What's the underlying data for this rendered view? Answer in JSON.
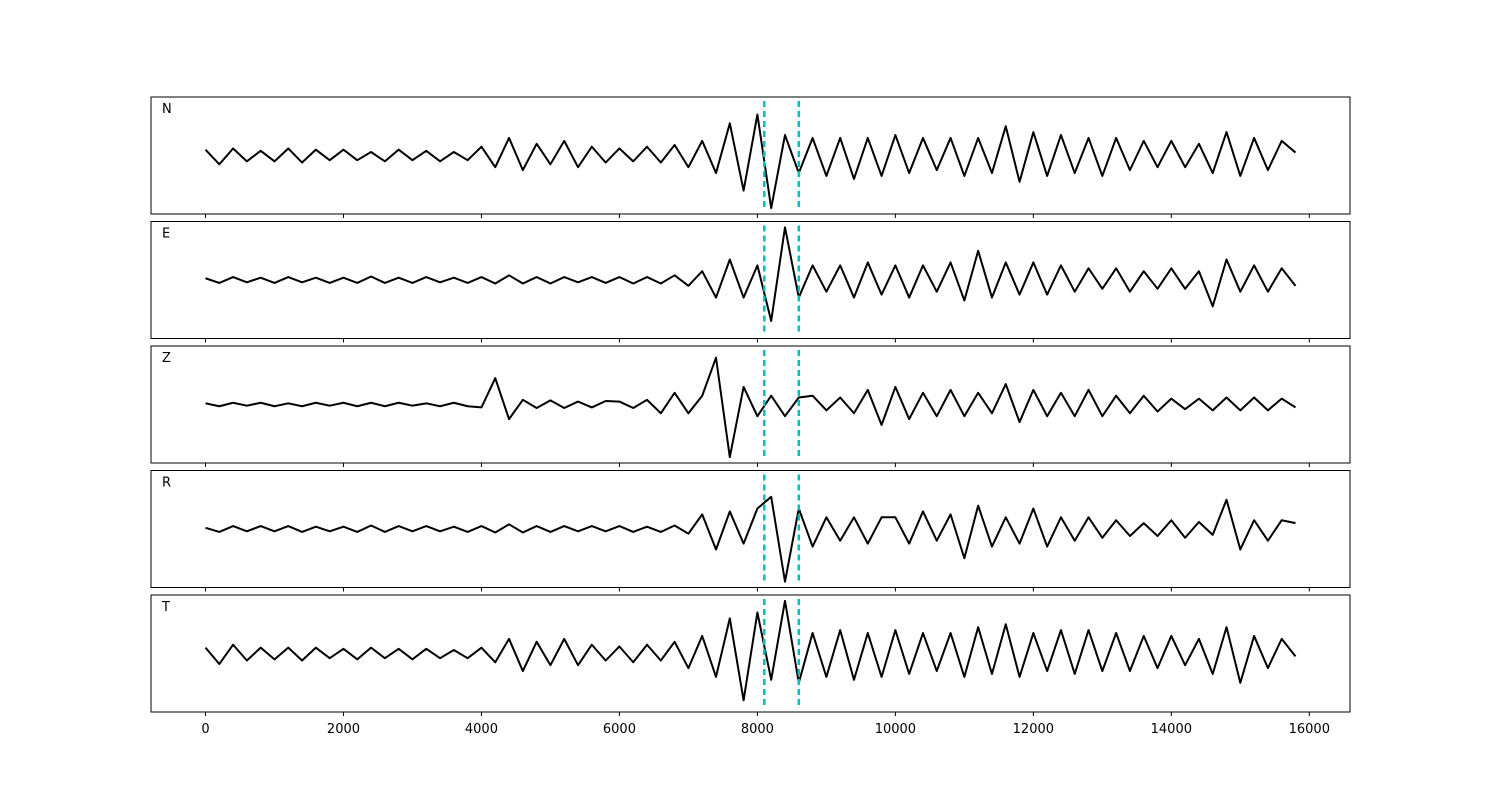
{
  "chart_data": {
    "type": "line",
    "xlim": [
      -790,
      16590
    ],
    "xticks": [
      0,
      2000,
      4000,
      6000,
      8000,
      10000,
      12000,
      14000,
      16000
    ],
    "ylim": [
      -1,
      1
    ],
    "x": [
      0,
      200,
      400,
      600,
      800,
      1000,
      1200,
      1400,
      1600,
      1800,
      2000,
      2200,
      2400,
      2600,
      2800,
      3000,
      3200,
      3400,
      3600,
      3800,
      4000,
      4200,
      4400,
      4600,
      4800,
      5000,
      5200,
      5400,
      5600,
      5800,
      6000,
      6200,
      6400,
      6600,
      6800,
      7000,
      7200,
      7400,
      7600,
      7800,
      8000,
      8200,
      8400,
      8600,
      8800,
      9000,
      9200,
      9400,
      9600,
      9800,
      10000,
      10200,
      10400,
      10600,
      10800,
      11000,
      11200,
      11400,
      11600,
      11800,
      12000,
      12200,
      12400,
      12600,
      12800,
      13000,
      13200,
      13400,
      13600,
      13800,
      14000,
      14200,
      14400,
      14600,
      14800,
      15000,
      15200,
      15400,
      15600,
      15800
    ],
    "markers": {
      "color": "#00bfbf",
      "x": [
        8100,
        8600
      ]
    },
    "series": [
      {
        "name": "N",
        "color": "#000000",
        "values": [
          0.1,
          -0.15,
          0.12,
          -0.1,
          0.08,
          -0.1,
          0.12,
          -0.12,
          0.1,
          -0.08,
          0.1,
          -0.08,
          0.06,
          -0.1,
          0.1,
          -0.08,
          0.08,
          -0.1,
          0.06,
          -0.08,
          0.15,
          -0.2,
          0.3,
          -0.25,
          0.2,
          -0.15,
          0.25,
          -0.2,
          0.15,
          -0.12,
          0.12,
          -0.1,
          0.15,
          -0.12,
          0.18,
          -0.2,
          0.25,
          -0.3,
          0.55,
          -0.6,
          0.7,
          -0.9,
          0.35,
          -0.3,
          0.3,
          -0.35,
          0.3,
          -0.4,
          0.3,
          -0.35,
          0.35,
          -0.3,
          0.3,
          -0.25,
          0.3,
          -0.35,
          0.3,
          -0.3,
          0.5,
          -0.45,
          0.4,
          -0.35,
          0.35,
          -0.3,
          0.3,
          -0.35,
          0.3,
          -0.25,
          0.25,
          -0.2,
          0.25,
          -0.2,
          0.2,
          -0.3,
          0.4,
          -0.35,
          0.3,
          -0.25,
          0.25,
          0.05
        ]
      },
      {
        "name": "E",
        "color": "#000000",
        "values": [
          0.03,
          -0.05,
          0.05,
          -0.04,
          0.04,
          -0.05,
          0.05,
          -0.04,
          0.04,
          -0.05,
          0.04,
          -0.05,
          0.06,
          -0.05,
          0.04,
          -0.05,
          0.05,
          -0.04,
          0.04,
          -0.05,
          0.05,
          -0.06,
          0.08,
          -0.06,
          0.05,
          -0.06,
          0.05,
          -0.04,
          0.05,
          -0.05,
          0.05,
          -0.06,
          0.05,
          -0.06,
          0.08,
          -0.1,
          0.15,
          -0.3,
          0.35,
          -0.3,
          0.25,
          -0.7,
          0.9,
          -0.3,
          0.25,
          -0.2,
          0.25,
          -0.3,
          0.3,
          -0.25,
          0.25,
          -0.3,
          0.25,
          -0.2,
          0.3,
          -0.35,
          0.5,
          -0.3,
          0.3,
          -0.25,
          0.3,
          -0.25,
          0.25,
          -0.2,
          0.2,
          -0.15,
          0.2,
          -0.2,
          0.15,
          -0.15,
          0.2,
          -0.15,
          0.15,
          -0.45,
          0.35,
          -0.2,
          0.25,
          -0.2,
          0.2,
          -0.1
        ]
      },
      {
        "name": "Z",
        "color": "#000000",
        "values": [
          0.02,
          -0.03,
          0.03,
          -0.02,
          0.03,
          -0.03,
          0.02,
          -0.03,
          0.03,
          -0.02,
          0.03,
          -0.03,
          0.03,
          -0.03,
          0.03,
          -0.02,
          0.02,
          -0.03,
          0.03,
          -0.03,
          -0.05,
          0.45,
          -0.25,
          0.08,
          -0.06,
          0.07,
          -0.06,
          0.05,
          -0.05,
          0.06,
          0.05,
          -0.06,
          0.08,
          -0.15,
          0.2,
          -0.15,
          0.15,
          0.8,
          -0.9,
          0.3,
          -0.2,
          0.15,
          -0.2,
          0.12,
          0.15,
          -0.1,
          0.12,
          -0.15,
          0.25,
          -0.35,
          0.3,
          -0.25,
          0.2,
          -0.2,
          0.25,
          -0.2,
          0.2,
          -0.15,
          0.35,
          -0.3,
          0.25,
          -0.2,
          0.2,
          -0.2,
          0.25,
          -0.2,
          0.15,
          -0.15,
          0.15,
          -0.12,
          0.1,
          -0.08,
          0.1,
          -0.1,
          0.12,
          -0.1,
          0.12,
          -0.1,
          0.1,
          -0.05
        ]
      },
      {
        "name": "R",
        "color": "#000000",
        "values": [
          0.02,
          -0.05,
          0.05,
          -0.04,
          0.05,
          -0.04,
          0.05,
          -0.05,
          0.04,
          -0.04,
          0.04,
          -0.05,
          0.06,
          -0.05,
          0.05,
          -0.04,
          0.05,
          -0.04,
          0.04,
          -0.05,
          0.05,
          -0.06,
          0.08,
          -0.06,
          0.05,
          -0.05,
          0.05,
          -0.04,
          0.05,
          -0.04,
          0.05,
          -0.05,
          0.04,
          -0.05,
          0.06,
          -0.08,
          0.25,
          -0.35,
          0.3,
          -0.25,
          0.35,
          0.55,
          -0.9,
          0.35,
          -0.3,
          0.2,
          -0.2,
          0.2,
          -0.25,
          0.2,
          0.2,
          -0.25,
          0.3,
          -0.2,
          0.25,
          -0.5,
          0.4,
          -0.3,
          0.2,
          -0.25,
          0.35,
          -0.3,
          0.2,
          -0.2,
          0.2,
          -0.15,
          0.15,
          -0.12,
          0.1,
          -0.12,
          0.15,
          -0.15,
          0.12,
          -0.1,
          0.5,
          -0.35,
          0.15,
          -0.2,
          0.15,
          0.1
        ]
      },
      {
        "name": "T",
        "color": "#000000",
        "values": [
          0.1,
          -0.18,
          0.15,
          -0.12,
          0.1,
          -0.1,
          0.1,
          -0.12,
          0.1,
          -0.08,
          0.08,
          -0.1,
          0.1,
          -0.08,
          0.08,
          -0.1,
          0.08,
          -0.08,
          0.06,
          -0.08,
          0.1,
          -0.15,
          0.25,
          -0.3,
          0.2,
          -0.2,
          0.25,
          -0.2,
          0.15,
          -0.12,
          0.12,
          -0.15,
          0.15,
          -0.12,
          0.2,
          -0.25,
          0.3,
          -0.4,
          0.6,
          -0.8,
          0.7,
          -0.45,
          0.9,
          -0.5,
          0.35,
          -0.4,
          0.4,
          -0.45,
          0.35,
          -0.4,
          0.4,
          -0.35,
          0.35,
          -0.3,
          0.35,
          -0.4,
          0.45,
          -0.35,
          0.5,
          -0.4,
          0.35,
          -0.3,
          0.4,
          -0.35,
          0.4,
          -0.3,
          0.35,
          -0.3,
          0.3,
          -0.25,
          0.3,
          -0.2,
          0.25,
          -0.35,
          0.45,
          -0.5,
          0.3,
          -0.25,
          0.25,
          -0.05
        ]
      }
    ]
  }
}
